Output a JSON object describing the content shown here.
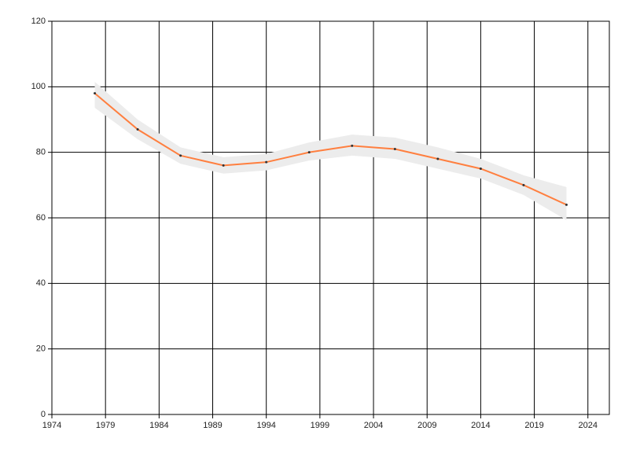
{
  "chart_data": {
    "type": "line",
    "x": [
      1978,
      1982,
      1986,
      1990,
      1994,
      1998,
      2002,
      2006,
      2010,
      2014,
      2018,
      2022
    ],
    "series": [
      {
        "color": "#ff7f3f",
        "values": [
          98,
          87,
          79,
          76,
          77,
          80,
          82,
          81,
          78,
          75,
          70,
          64
        ]
      }
    ],
    "band": {
      "color": "#ececec",
      "upper": [
        101.5,
        90,
        81.5,
        78.5,
        79.5,
        83,
        85.4,
        84.5,
        81.5,
        78,
        73,
        69.4
      ],
      "lower": [
        93.6,
        84,
        76.5,
        73.5,
        74.5,
        77.5,
        79,
        78,
        75,
        72,
        67,
        59.3
      ]
    },
    "xlim": [
      1974,
      2026
    ],
    "xticks": [
      1974,
      1979,
      1984,
      1989,
      1994,
      1999,
      2004,
      2009,
      2014,
      2019,
      2024
    ],
    "ylim": [
      0,
      120
    ],
    "yticks": [
      0,
      20,
      40,
      60,
      80,
      100,
      120
    ],
    "grid": true
  }
}
